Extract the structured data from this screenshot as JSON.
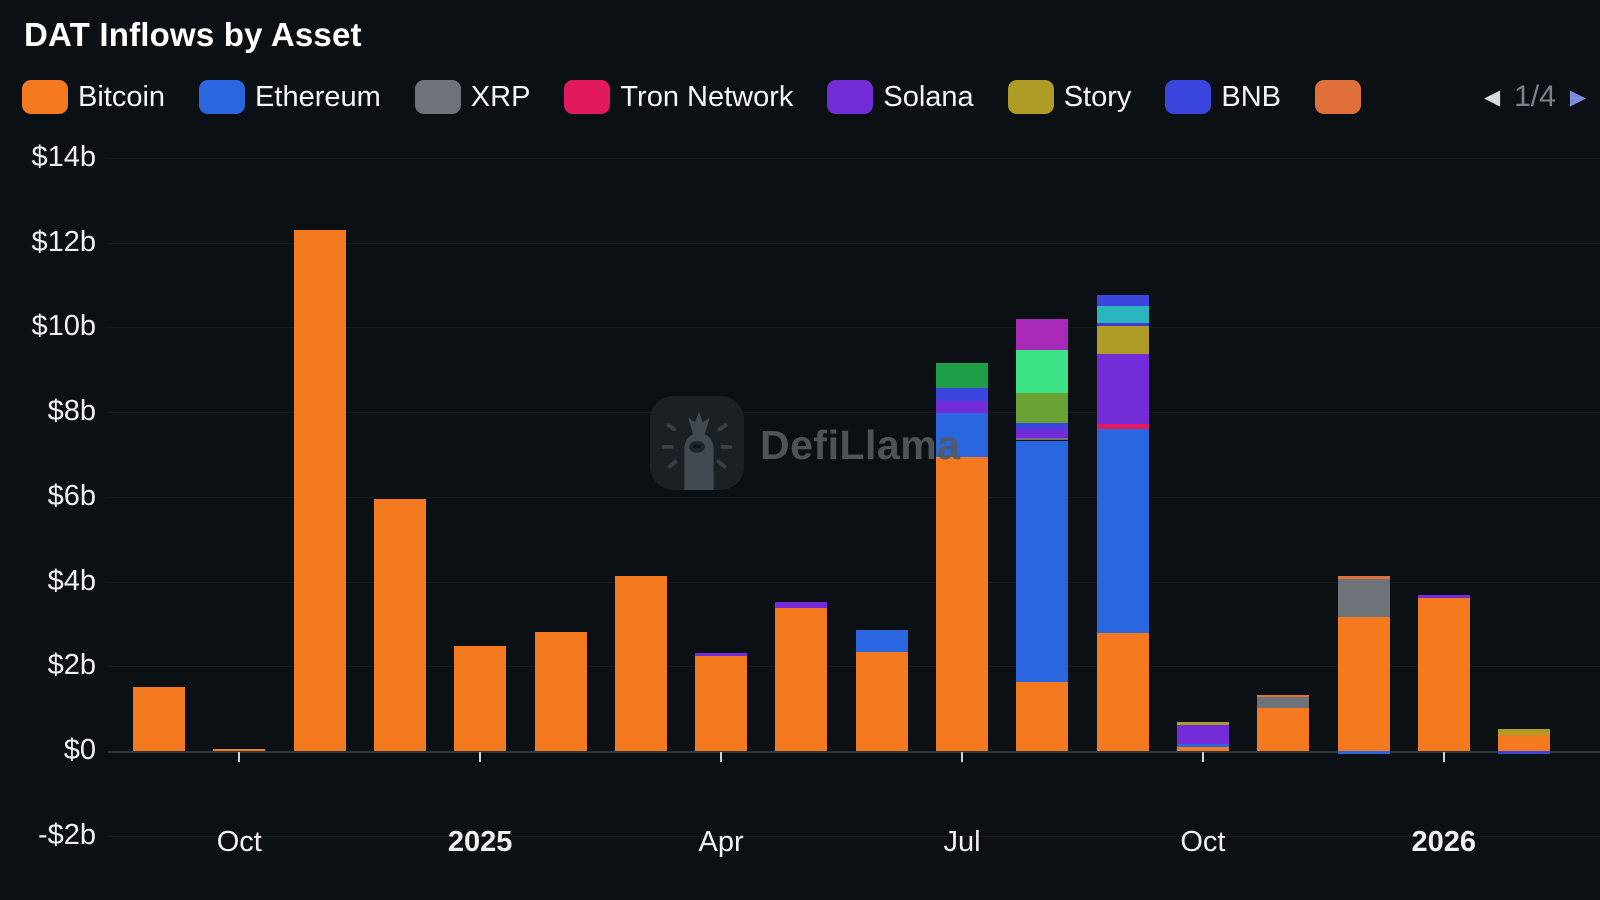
{
  "header": {
    "title": "DAT Inflows by Asset"
  },
  "legend": {
    "items": [
      {
        "label": "Bitcoin",
        "color": "#f4791f"
      },
      {
        "label": "Ethereum",
        "color": "#2966e0"
      },
      {
        "label": "XRP",
        "color": "#6e737a"
      },
      {
        "label": "Tron Network",
        "color": "#e2195e"
      },
      {
        "label": "Solana",
        "color": "#742cd9"
      },
      {
        "label": "Story",
        "color": "#af9c26"
      },
      {
        "label": "BNB",
        "color": "#3a46dd"
      },
      {
        "label": "",
        "color": "#e0703a"
      }
    ],
    "pager": {
      "current_page": "1/4",
      "prev_icon": "left-triangle",
      "next_icon": "right-triangle",
      "prev_color": "#d9dbde",
      "next_color": "#7e8ce0"
    }
  },
  "watermark": {
    "text": "DefiLlama",
    "logo": "defillama-llama-icon"
  },
  "chart_data": {
    "type": "bar",
    "stacked": true,
    "title": "DAT Inflows by Asset",
    "unit": "USD billions",
    "grid": true,
    "legend_position": "top",
    "y_axis": {
      "tick_labels": [
        "$14b",
        "$12b",
        "$10b",
        "$8b",
        "$6b",
        "$4b",
        "$2b",
        "$0",
        "-$2b"
      ],
      "tick_values": [
        14,
        12,
        10,
        8,
        6,
        4,
        2,
        0,
        -2
      ],
      "min": -2,
      "max": 14
    },
    "x_axis": {
      "tick_labels": [
        {
          "label": "Oct",
          "month_index": 1,
          "bold": false
        },
        {
          "label": "2025",
          "month_index": 4,
          "bold": true
        },
        {
          "label": "Apr",
          "month_index": 7,
          "bold": false
        },
        {
          "label": "Jul",
          "month_index": 10,
          "bold": false
        },
        {
          "label": "Oct",
          "month_index": 13,
          "bold": false
        },
        {
          "label": "2026",
          "month_index": 16,
          "bold": true
        }
      ]
    },
    "months": [
      "Sep 2024",
      "Oct 2024",
      "Nov 2024",
      "Dec 2024",
      "Jan 2025",
      "Feb 2025",
      "Mar 2025",
      "Apr 2025",
      "May 2025",
      "Jun 2025",
      "Jul 2025",
      "Aug 2025",
      "Sep 2025",
      "Oct 2025",
      "Nov 2025",
      "Dec 2025",
      "Jan 2026",
      "Feb 2026"
    ],
    "series_colors": {
      "Bitcoin": "#f4791f",
      "Ethereum": "#2966e0",
      "XRP": "#6e737a",
      "Tron Network": "#e2195e",
      "Solana": "#742cd9",
      "Story": "#af9c26",
      "BNB": "#3a46dd",
      "Other (green)": "#1d9e47",
      "Other (spring green)": "#3ce487",
      "Other (olive green)": "#69a233",
      "Other (magenta)": "#a828b8",
      "Other (teal)": "#2ab4bd",
      "Other (indigo)": "#4338d6",
      "Other (orange)": "#e0703a"
    },
    "bars": [
      {
        "month": "Sep 2024",
        "segments": [
          {
            "name": "Bitcoin",
            "value": 1.52
          }
        ]
      },
      {
        "month": "Oct 2024",
        "segments": [
          {
            "name": "Bitcoin",
            "value": 0.05
          }
        ]
      },
      {
        "month": "Nov 2024",
        "segments": [
          {
            "name": "Bitcoin",
            "value": 12.3
          }
        ]
      },
      {
        "month": "Dec 2024",
        "segments": [
          {
            "name": "Bitcoin",
            "value": 5.95
          }
        ]
      },
      {
        "month": "Jan 2025",
        "segments": [
          {
            "name": "Bitcoin",
            "value": 2.48
          }
        ]
      },
      {
        "month": "Feb 2025",
        "segments": [
          {
            "name": "Bitcoin",
            "value": 2.81
          }
        ]
      },
      {
        "month": "Mar 2025",
        "segments": [
          {
            "name": "Bitcoin",
            "value": 4.14
          }
        ]
      },
      {
        "month": "Apr 2025",
        "segments": [
          {
            "name": "Bitcoin",
            "value": 2.24
          },
          {
            "name": "Solana",
            "value": 0.07
          }
        ]
      },
      {
        "month": "May 2025",
        "segments": [
          {
            "name": "Bitcoin",
            "value": 3.37
          },
          {
            "name": "Solana",
            "value": 0.15
          }
        ]
      },
      {
        "month": "Jun 2025",
        "segments": [
          {
            "name": "Bitcoin",
            "value": 2.34
          },
          {
            "name": "Ethereum",
            "value": 0.52
          }
        ]
      },
      {
        "month": "Jul 2025",
        "segments": [
          {
            "name": "Bitcoin",
            "value": 6.95
          },
          {
            "name": "Ethereum",
            "value": 1.03
          },
          {
            "name": "Solana",
            "value": 0.28
          },
          {
            "name": "BNB",
            "value": 0.3
          },
          {
            "name": "Other (green)",
            "value": 0.6
          }
        ]
      },
      {
        "month": "Aug 2025",
        "segments": [
          {
            "name": "Bitcoin",
            "value": 1.63
          },
          {
            "name": "Ethereum",
            "value": 5.7
          },
          {
            "name": "XRP",
            "value": 0.07
          },
          {
            "name": "Solana",
            "value": 0.21
          },
          {
            "name": "BNB",
            "value": 0.14
          },
          {
            "name": "Other (olive green)",
            "value": 0.71
          },
          {
            "name": "Other (spring green)",
            "value": 1.01
          },
          {
            "name": "Other (magenta)",
            "value": 0.73
          }
        ]
      },
      {
        "month": "Sep 2025",
        "segments": [
          {
            "name": "Bitcoin",
            "value": 2.78
          },
          {
            "name": "Ethereum",
            "value": 4.81
          },
          {
            "name": "Tron Network",
            "value": 0.14
          },
          {
            "name": "Solana",
            "value": 1.65
          },
          {
            "name": "Story",
            "value": 0.66
          },
          {
            "name": "Other (indigo)",
            "value": 0.07
          },
          {
            "name": "Other (teal)",
            "value": 0.4
          },
          {
            "name": "BNB",
            "value": 0.26
          }
        ]
      },
      {
        "month": "Oct 2025",
        "segments": [
          {
            "name": "Bitcoin",
            "value": 0.1
          },
          {
            "name": "Ethereum",
            "value": 0.06
          },
          {
            "name": "Solana",
            "value": 0.46
          },
          {
            "name": "Story",
            "value": 0.07
          }
        ]
      },
      {
        "month": "Nov 2025",
        "segments": [
          {
            "name": "Bitcoin",
            "value": 1.02
          },
          {
            "name": "XRP",
            "value": 0.26
          },
          {
            "name": "Other (orange)",
            "value": 0.03
          }
        ]
      },
      {
        "month": "Dec 2025",
        "segments": [
          {
            "name": "Ethereum",
            "value": -0.08
          },
          {
            "name": "Bitcoin",
            "value": 3.17
          },
          {
            "name": "XRP",
            "value": 0.9
          },
          {
            "name": "Other (orange)",
            "value": 0.05
          }
        ]
      },
      {
        "month": "Jan 2026",
        "segments": [
          {
            "name": "Bitcoin",
            "value": 3.62
          },
          {
            "name": "Solana",
            "value": 0.06
          }
        ]
      },
      {
        "month": "Feb 2026",
        "segments": [
          {
            "name": "BNB",
            "value": -0.06
          },
          {
            "name": "Bitcoin",
            "value": 0.38
          },
          {
            "name": "Story",
            "value": 0.14
          }
        ]
      }
    ]
  }
}
